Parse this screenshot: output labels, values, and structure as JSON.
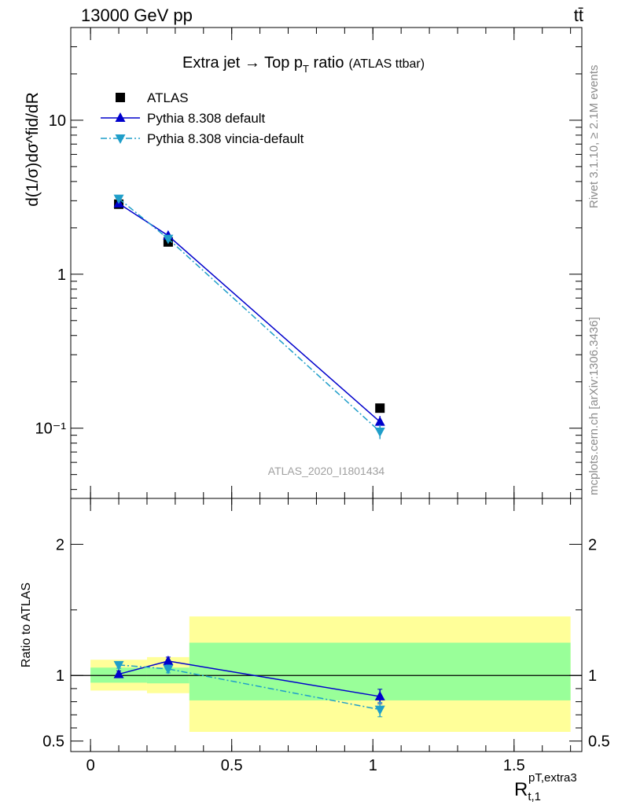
{
  "header": {
    "energy_label": "13000 GeV pp",
    "process_label": "tt̄"
  },
  "side_labels": {
    "rivet": "Rivet 3.1.10, ≥ 2.1M events",
    "mcplots": "mcplots.cern.ch [arXiv:1306.3436]"
  },
  "chart_data": [
    {
      "type": "line",
      "title": "Extra jet → Top p",
      "title_sub": "T",
      "title_suffix": " ratio",
      "title_note": "(ATLAS ttbar)",
      "analysis_id": "ATLAS_2020_I1801434",
      "ylabel": "d(1/σ)dσ^fid/dR",
      "yscale": "log",
      "ylim": [
        0.035,
        40
      ],
      "xlim": [
        -0.07,
        1.74
      ],
      "yticks": [
        {
          "value": 0.1,
          "label": "10⁻¹"
        },
        {
          "value": 1,
          "label": "1"
        },
        {
          "value": 10,
          "label": "10"
        }
      ],
      "legend_placement": "top-left",
      "series": [
        {
          "name": "ATLAS",
          "color": "#000000",
          "marker": "square",
          "x": [
            0.1,
            0.275,
            1.025
          ],
          "y": [
            2.85,
            1.62,
            0.135
          ]
        },
        {
          "name": "Pythia 8.308 default",
          "color": "#0000cc",
          "marker": "triangle-up",
          "line": "solid",
          "x": [
            0.1,
            0.275,
            1.025
          ],
          "y": [
            2.88,
            1.78,
            0.11
          ],
          "yerr": [
            0.05,
            0.05,
            0.01
          ]
        },
        {
          "name": "Pythia 8.308 vincia-default",
          "color": "#1f9ec9",
          "marker": "triangle-down",
          "line": "dash-dot",
          "x": [
            0.1,
            0.275,
            1.025
          ],
          "y": [
            3.1,
            1.7,
            0.095
          ],
          "yerr": [
            0.05,
            0.05,
            0.01
          ]
        }
      ]
    },
    {
      "type": "line",
      "ylabel": "Ratio to ATLAS",
      "xlabel": "R",
      "xlabel_sub": "t,1",
      "xlabel_sup": "pT,extra3",
      "ylim": [
        0.42,
        2.35
      ],
      "xlim": [
        -0.07,
        1.74
      ],
      "yticks": [
        0.5,
        1,
        2
      ],
      "yticks_minor": [
        0.6,
        0.7,
        0.8,
        0.9,
        1.5
      ],
      "xticks": [
        {
          "value": 0,
          "label": "0"
        },
        {
          "value": 0.5,
          "label": "0.5"
        },
        {
          "value": 1,
          "label": "1"
        },
        {
          "value": 1.5,
          "label": "1.5"
        }
      ],
      "reference_line": 1,
      "bands": [
        {
          "x0": 0.0,
          "x1": 0.2,
          "yellow": [
            0.885,
            1.12
          ],
          "green": [
            0.945,
            1.06
          ]
        },
        {
          "x0": 0.2,
          "x1": 0.35,
          "yellow": [
            0.865,
            1.14
          ],
          "green": [
            0.94,
            1.06
          ]
        },
        {
          "x0": 0.35,
          "x1": 1.7,
          "yellow": [
            0.57,
            1.45
          ],
          "green": [
            0.81,
            1.25
          ]
        }
      ],
      "band_colors": {
        "yellow": "#ffff99",
        "green": "#99ff99"
      },
      "series": [
        {
          "name": "Pythia 8.308 default",
          "color": "#0000cc",
          "marker": "triangle-up",
          "line": "solid",
          "x": [
            0.1,
            0.275,
            1.025
          ],
          "y": [
            1.01,
            1.11,
            0.84
          ],
          "yerr": [
            0.025,
            0.03,
            0.055
          ]
        },
        {
          "name": "Pythia 8.308 vincia-default",
          "color": "#1f9ec9",
          "marker": "triangle-down",
          "line": "dash-dot",
          "x": [
            0.1,
            0.275,
            1.025
          ],
          "y": [
            1.08,
            1.05,
            0.74
          ],
          "yerr": [
            0.025,
            0.03,
            0.055
          ]
        }
      ]
    }
  ]
}
